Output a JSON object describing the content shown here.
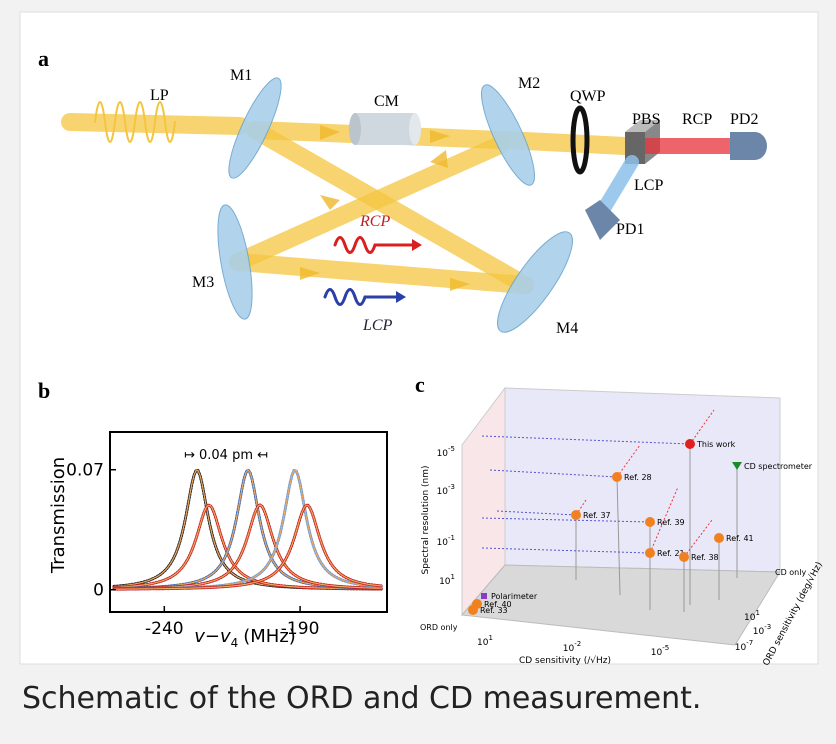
{
  "figure": {
    "panel_a": {
      "label": "a",
      "texts": [
        "LP",
        "M1",
        "CM",
        "M2",
        "QWP",
        "PBS",
        "RCP",
        "PD2",
        "LCP",
        "PD1",
        "M3",
        "M4"
      ],
      "wave_texts": [
        "RCP",
        "LCP"
      ]
    },
    "panel_b": {
      "label": "b",
      "ylabel": "Transmission",
      "xlabel": {
        "main": "v−v",
        "sub": "4",
        "unit": "(MHz)"
      },
      "annotation": "↦ 0.04 pm ↤",
      "xlim": [
        -260,
        -158
      ],
      "ylim": [
        -0.013,
        0.092
      ],
      "xticks": [
        -240,
        -190
      ],
      "yticks": [
        0,
        0.07
      ]
    },
    "panel_c": {
      "label": "c",
      "ylabel": "Spectral resolution (nm)",
      "xlabel": "CD sensitivity (/√Hz)",
      "zlabel": "ORD sensitivity (deg/√Hz)",
      "yticks": [
        {
          "base": "10",
          "exp": "-5"
        },
        {
          "base": "10",
          "exp": "-3"
        },
        {
          "base": "10",
          "exp": "-1"
        },
        {
          "base": "10",
          "exp": "1"
        }
      ],
      "xticks": [
        {
          "base": "10",
          "exp": "1"
        },
        {
          "base": "10",
          "exp": "-2"
        },
        {
          "base": "10",
          "exp": "-5"
        }
      ],
      "zticks": [
        {
          "base": "10",
          "exp": "1"
        },
        {
          "base": "10",
          "exp": "-3"
        },
        {
          "base": "10",
          "exp": "-7"
        }
      ],
      "corner_labels": [
        "CD only",
        "ORD only"
      ],
      "points": [
        "This work",
        "Ref. 28",
        "Ref. 37",
        "Ref. 39",
        "Ref. 21",
        "Ref. 38",
        "Ref. 41",
        "CD spectrometer",
        "Polarimeter",
        "Ref. 40",
        "Ref. 33"
      ]
    }
  },
  "caption": "Schematic of the ORD and CD measurement."
}
